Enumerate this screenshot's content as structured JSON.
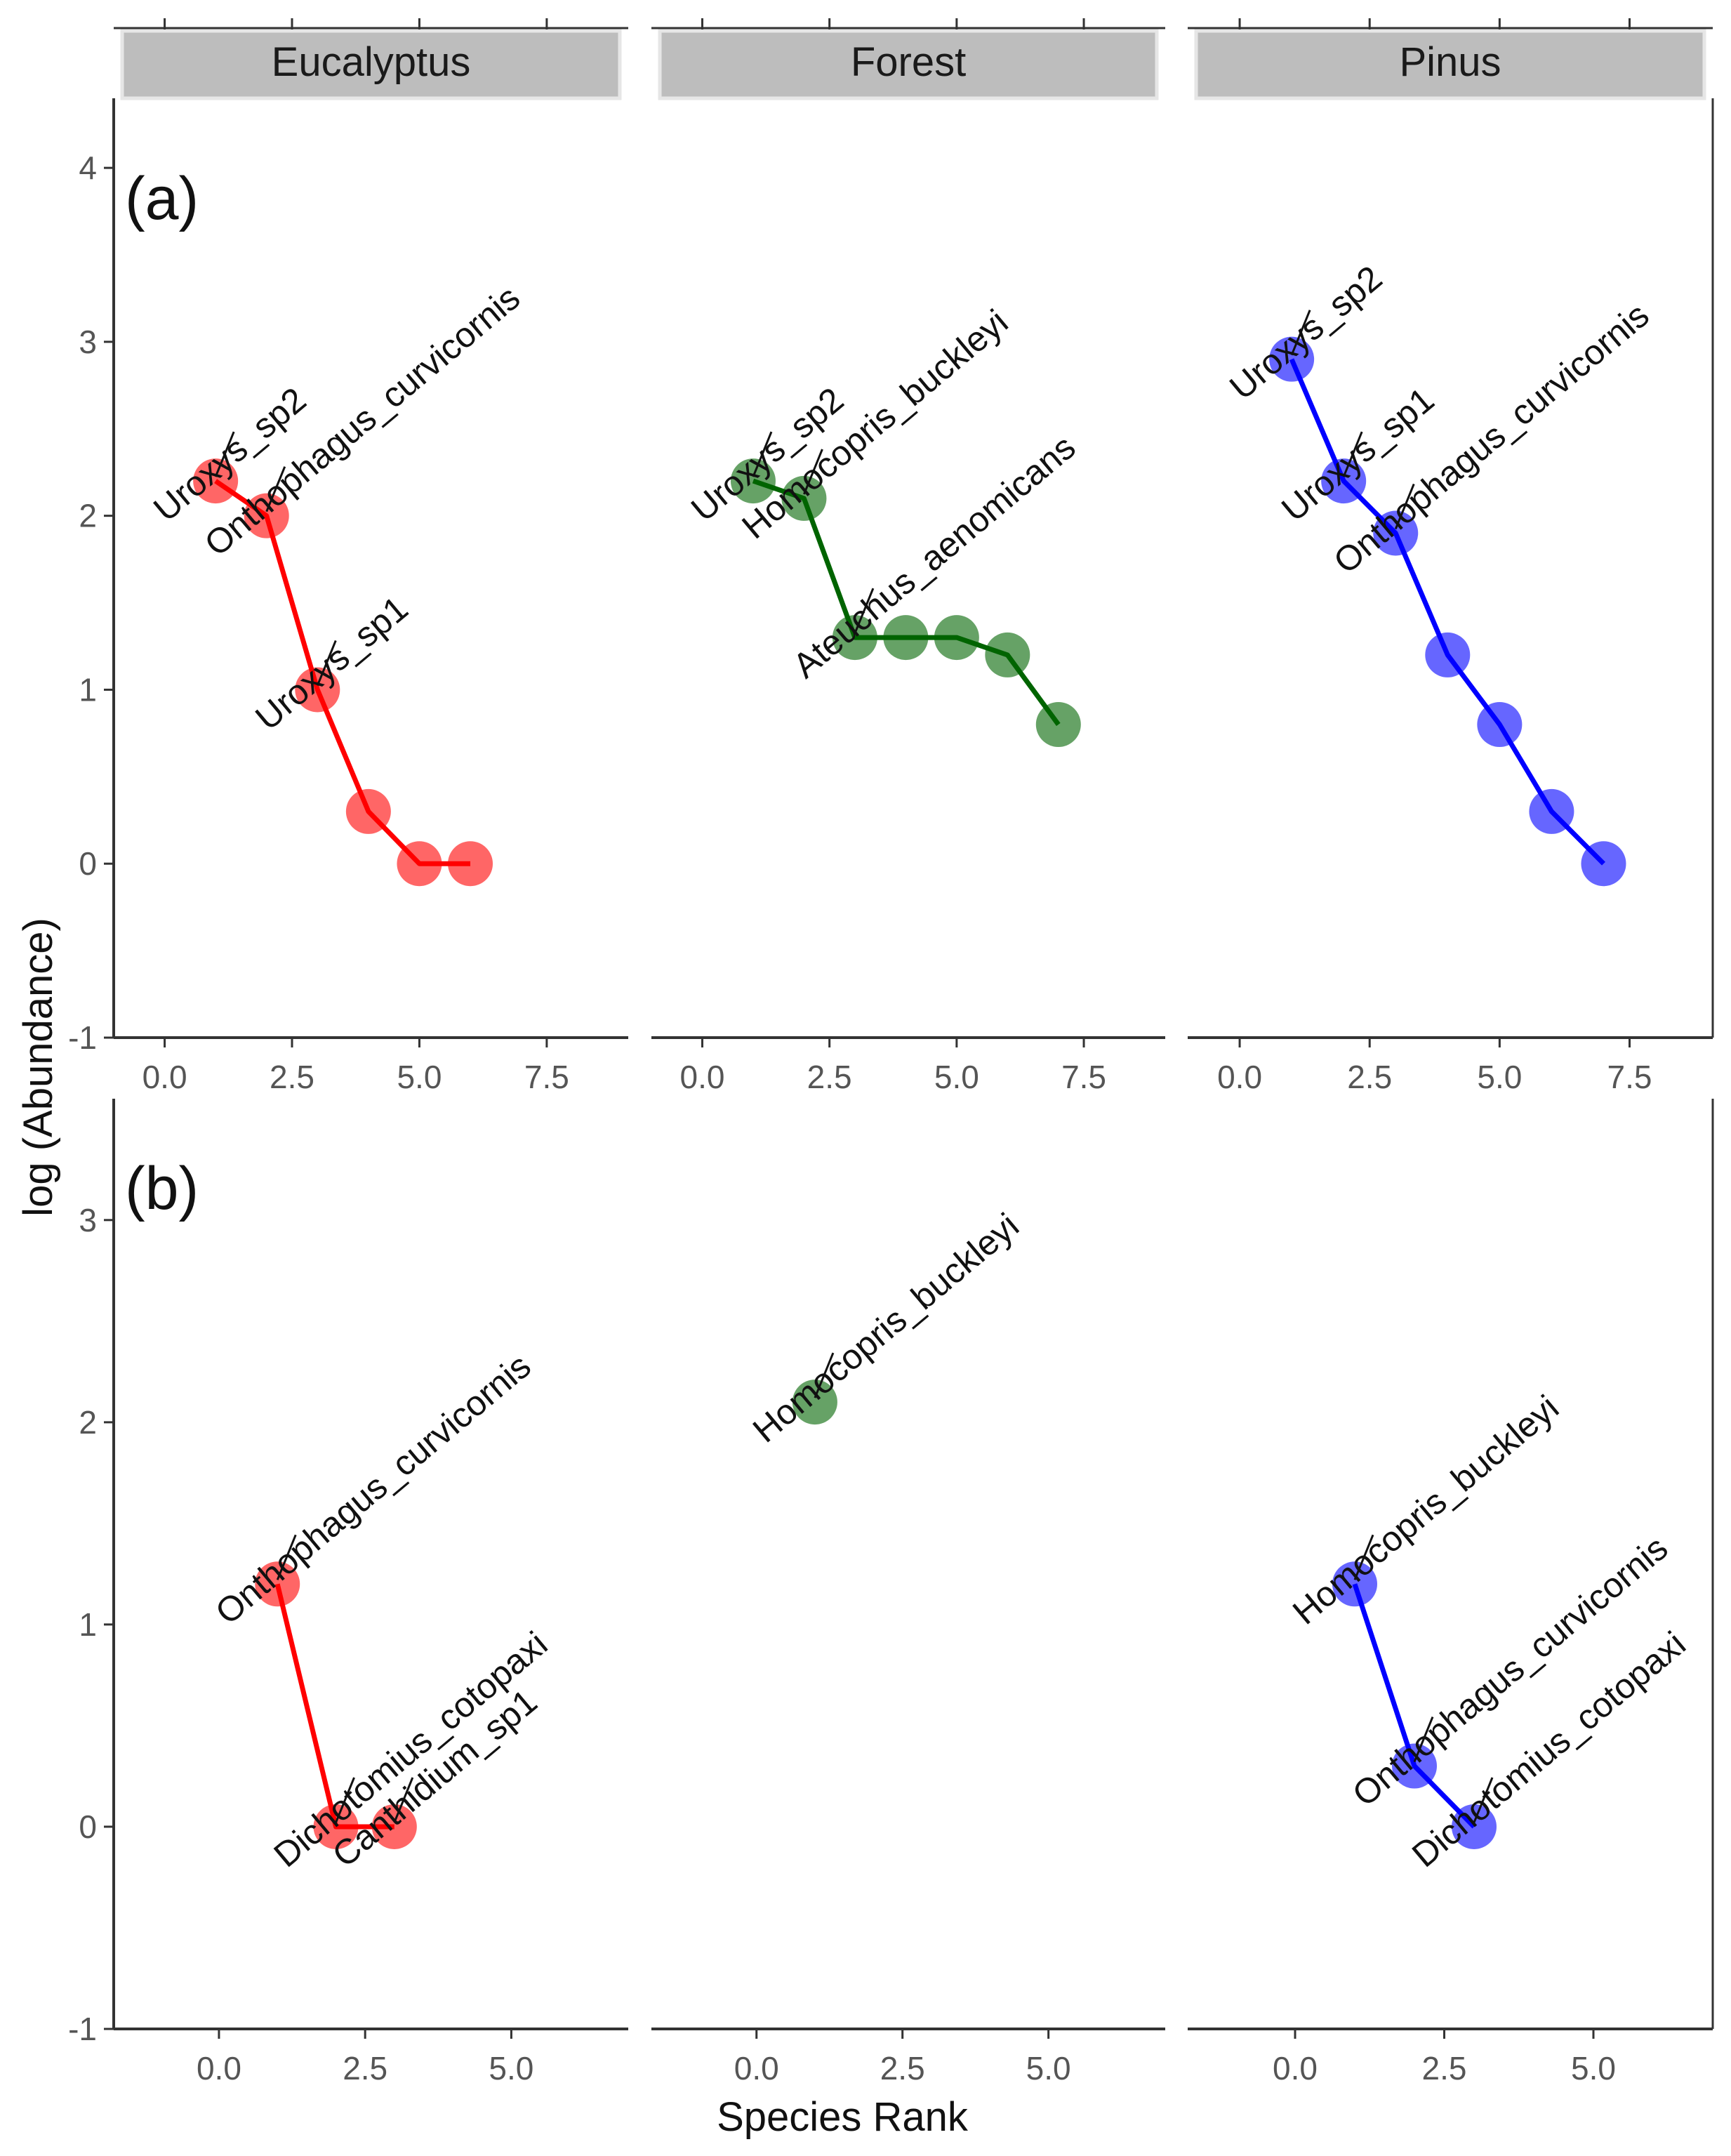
{
  "chart_data": {
    "type": "line",
    "title": "",
    "ylabel": "log (Abundance)",
    "xlabel": "Species Rank",
    "facet_labels": [
      "Eucalyptus",
      "Forest",
      "Pinus"
    ],
    "series_colors": {
      "Eucalyptus": "#ff0000",
      "Forest": "#006400",
      "Pinus": "#0000ff"
    },
    "rows": [
      {
        "tag": "(a)",
        "ylim": [
          -1,
          4.4
        ],
        "yticks": [
          "4",
          "3",
          "2",
          "1",
          "0",
          "-1"
        ],
        "ytick_values": [
          4,
          3,
          2,
          1,
          0,
          -1
        ],
        "xlim": [
          -1,
          9.1
        ],
        "xticks": [
          "0.0",
          "2.5",
          "5.0",
          "7.5"
        ],
        "xtick_values": [
          0,
          2.5,
          5,
          7.5
        ],
        "panels": [
          {
            "facet": "Eucalyptus",
            "points": [
              {
                "x": 1,
                "y": 2.2,
                "label": "Uroxys_sp2"
              },
              {
                "x": 2,
                "y": 2.0,
                "label": "Onthophagus_curvicornis"
              },
              {
                "x": 3,
                "y": 1.0,
                "label": "Uroxys_sp1"
              },
              {
                "x": 4,
                "y": 0.3,
                "label": ""
              },
              {
                "x": 5,
                "y": 0.0,
                "label": ""
              },
              {
                "x": 6,
                "y": 0.0,
                "label": ""
              }
            ]
          },
          {
            "facet": "Forest",
            "points": [
              {
                "x": 1,
                "y": 2.2,
                "label": "Uroxys_sp2"
              },
              {
                "x": 2,
                "y": 2.1,
                "label": "Homocopris_buckleyi"
              },
              {
                "x": 3,
                "y": 1.3,
                "label": "Ateuchus_aenomicans"
              },
              {
                "x": 4,
                "y": 1.3,
                "label": ""
              },
              {
                "x": 5,
                "y": 1.3,
                "label": ""
              },
              {
                "x": 6,
                "y": 1.2,
                "label": ""
              },
              {
                "x": 7,
                "y": 0.8,
                "label": ""
              }
            ]
          },
          {
            "facet": "Pinus",
            "points": [
              {
                "x": 1,
                "y": 2.9,
                "label": "Uroxys_sp2"
              },
              {
                "x": 2,
                "y": 2.2,
                "label": "Uroxys_sp1"
              },
              {
                "x": 3,
                "y": 1.9,
                "label": "Onthophagus_curvicornis"
              },
              {
                "x": 4,
                "y": 1.2,
                "label": ""
              },
              {
                "x": 5,
                "y": 0.8,
                "label": ""
              },
              {
                "x": 6,
                "y": 0.3,
                "label": ""
              },
              {
                "x": 7,
                "y": 0.0,
                "label": ""
              }
            ]
          }
        ]
      },
      {
        "tag": "(b)",
        "ylim": [
          -1,
          3.6
        ],
        "yticks": [
          "3",
          "2",
          "1",
          "0",
          "-1"
        ],
        "ytick_values": [
          3,
          2,
          1,
          0,
          -1
        ],
        "xlim": [
          -1.8,
          7.0
        ],
        "xticks": [
          "0.0",
          "2.5",
          "5.0"
        ],
        "xtick_values": [
          0,
          2.5,
          5
        ],
        "panels": [
          {
            "facet": "Eucalyptus",
            "points": [
              {
                "x": 1,
                "y": 1.2,
                "label": "Onthophagus_curvicornis"
              },
              {
                "x": 2,
                "y": 0.0,
                "label": "Dichotomius_cotopaxi"
              },
              {
                "x": 3,
                "y": 0.0,
                "label": "Canthidium_sp1"
              }
            ]
          },
          {
            "facet": "Forest",
            "points": [
              {
                "x": 1,
                "y": 2.1,
                "label": "Homocopris_buckleyi"
              }
            ]
          },
          {
            "facet": "Pinus",
            "points": [
              {
                "x": 1,
                "y": 1.2,
                "label": "Homocopris_buckleyi"
              },
              {
                "x": 2,
                "y": 0.3,
                "label": "Onthophagus_curvicornis"
              },
              {
                "x": 3,
                "y": 0.0,
                "label": "Dichotomius_cotopaxi"
              }
            ]
          }
        ]
      }
    ]
  }
}
